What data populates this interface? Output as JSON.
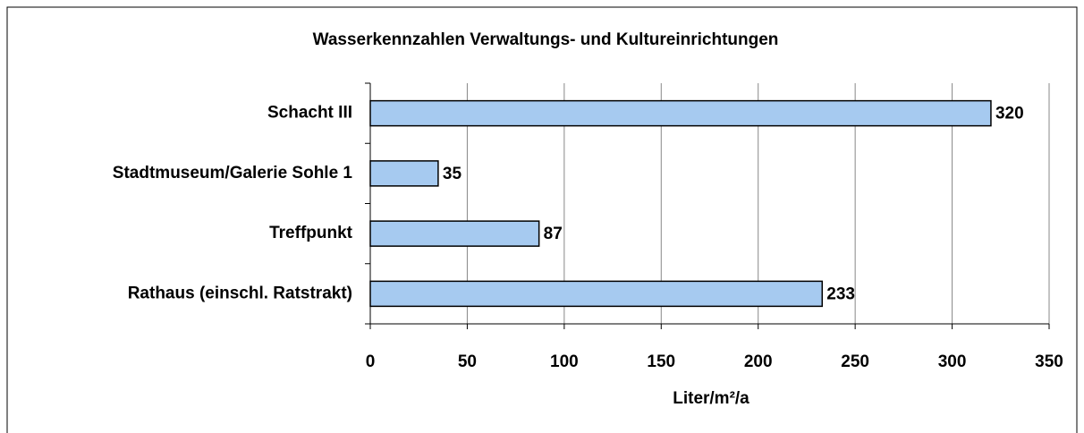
{
  "chart_data": {
    "type": "bar",
    "orientation": "horizontal",
    "title": "Wasserkennzahlen Verwaltungs- und Kultureinrichtungen",
    "categories": [
      "Schacht III",
      "Stadtmuseum/Galerie Sohle 1",
      "Treffpunkt",
      "Rathaus (einschl. Ratstrakt)"
    ],
    "values": [
      320,
      35,
      87,
      233
    ],
    "color": "#a6caf0",
    "xlabel": "Liter/m²/a",
    "xlim": [
      0,
      350
    ],
    "xticks": [
      0,
      50,
      100,
      150,
      200,
      250,
      300,
      350
    ],
    "grid": true
  }
}
